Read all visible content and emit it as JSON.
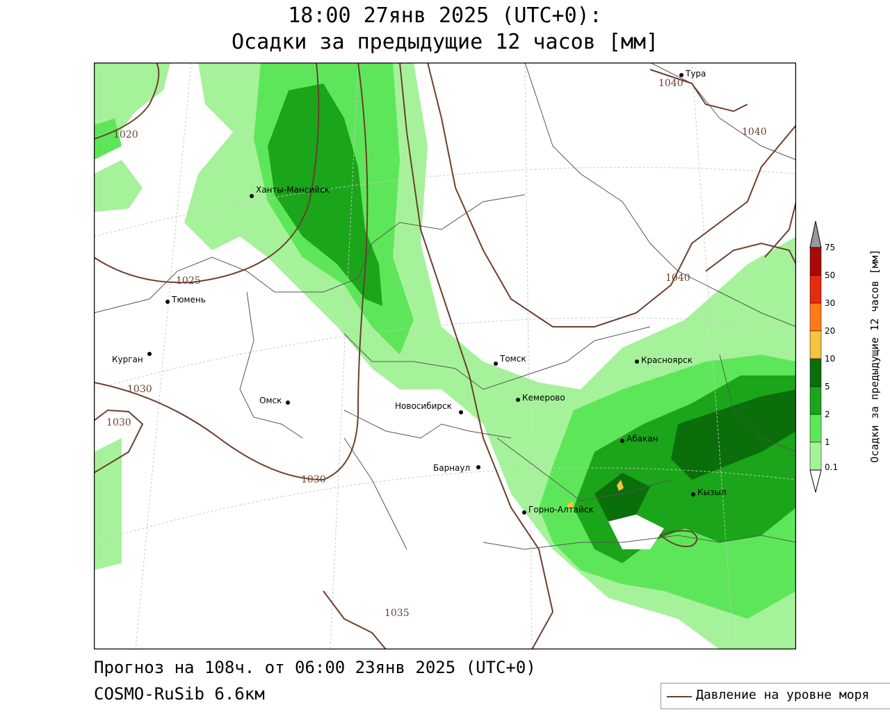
{
  "header": {
    "line1": "18:00 27янв 2025 (UTC+0):",
    "line2": "Осадки за предыдущие 12 часов [мм]"
  },
  "footer": {
    "forecast": "Прогноз на 108ч. от 06:00 23янв 2025 (UTC+0)",
    "model": "COSMO-RuSib 6.6км"
  },
  "legend": {
    "isobar_label": "Давление на уровне моря"
  },
  "colorbar": {
    "label": "Осадки за предыдущие 12 часов [мм]",
    "levels": [
      "0.1",
      "1",
      "2",
      "5",
      "10",
      "20",
      "30",
      "50",
      "75"
    ],
    "colors": [
      "#ffffff",
      "#a6f29a",
      "#5ee65a",
      "#1aa51a",
      "#0a6e0a",
      "#f6c343",
      "#ff7a1a",
      "#e52a10",
      "#a80a0a",
      "#999999"
    ]
  },
  "cities": [
    {
      "name": "Тура"
    },
    {
      "name": "Ханты-Мансийск"
    },
    {
      "name": "Тюмень"
    },
    {
      "name": "Курган"
    },
    {
      "name": "Омск"
    },
    {
      "name": "Новосибирск"
    },
    {
      "name": "Томск"
    },
    {
      "name": "Кемерово"
    },
    {
      "name": "Красноярск"
    },
    {
      "name": "Абакан"
    },
    {
      "name": "Барнаул"
    },
    {
      "name": "Горно-Алтайск"
    },
    {
      "name": "Кызыл"
    }
  ],
  "isobars": [
    "1020",
    "1025",
    "1030",
    "1030",
    "1030",
    "1035",
    "1040",
    "1040",
    "1040"
  ]
}
